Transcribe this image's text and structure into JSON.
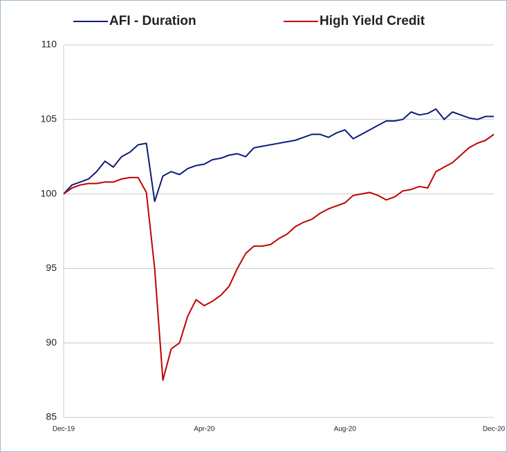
{
  "chart_data": {
    "type": "line",
    "categories": [
      "Dec-19",
      null,
      null,
      null,
      null,
      null,
      null,
      null,
      null,
      null,
      null,
      null,
      null,
      null,
      null,
      null,
      null,
      "Apr-20",
      null,
      null,
      null,
      null,
      null,
      null,
      null,
      null,
      null,
      null,
      null,
      null,
      null,
      null,
      null,
      null,
      "Aug-20",
      null,
      null,
      null,
      null,
      null,
      null,
      null,
      null,
      null,
      null,
      null,
      null,
      null,
      null,
      null,
      null,
      null,
      "Dec-20"
    ],
    "series": [
      {
        "name": "AFI - Duration",
        "color": "#0d1a7a",
        "values": [
          100,
          100.6,
          100.8,
          101.0,
          101.5,
          102.2,
          101.8,
          102.5,
          102.8,
          103.3,
          103.4,
          99.5,
          101.2,
          101.5,
          101.3,
          101.7,
          101.9,
          102.0,
          102.3,
          102.4,
          102.6,
          102.7,
          102.5,
          103.1,
          103.2,
          103.3,
          103.4,
          103.5,
          103.6,
          103.8,
          104.0,
          104.0,
          103.8,
          104.1,
          104.3,
          103.7,
          104.0,
          104.3,
          104.6,
          104.9,
          104.9,
          105.0,
          105.5,
          105.3,
          105.4,
          105.7,
          105.0,
          105.5,
          105.3,
          105.1,
          105.0,
          105.2,
          105.2
        ]
      },
      {
        "name": "High Yield Credit",
        "color": "#c00000",
        "values": [
          100,
          100.4,
          100.6,
          100.7,
          100.7,
          100.8,
          100.8,
          101.0,
          101.1,
          101.1,
          100.1,
          95.0,
          87.5,
          89.6,
          90.0,
          91.8,
          92.9,
          92.5,
          92.8,
          93.2,
          93.8,
          95.0,
          96.0,
          96.5,
          96.5,
          96.6,
          97.0,
          97.3,
          97.8,
          98.1,
          98.3,
          98.7,
          99.0,
          99.2,
          99.4,
          99.9,
          100.0,
          100.1,
          99.9,
          99.6,
          99.8,
          100.2,
          100.3,
          100.5,
          100.4,
          101.5,
          101.8,
          102.1,
          102.6,
          103.1,
          103.4,
          103.6,
          104.0
        ]
      }
    ],
    "ylim": [
      85,
      110
    ],
    "yticks": [
      85,
      90,
      95,
      100,
      105,
      110
    ],
    "grid": true
  }
}
